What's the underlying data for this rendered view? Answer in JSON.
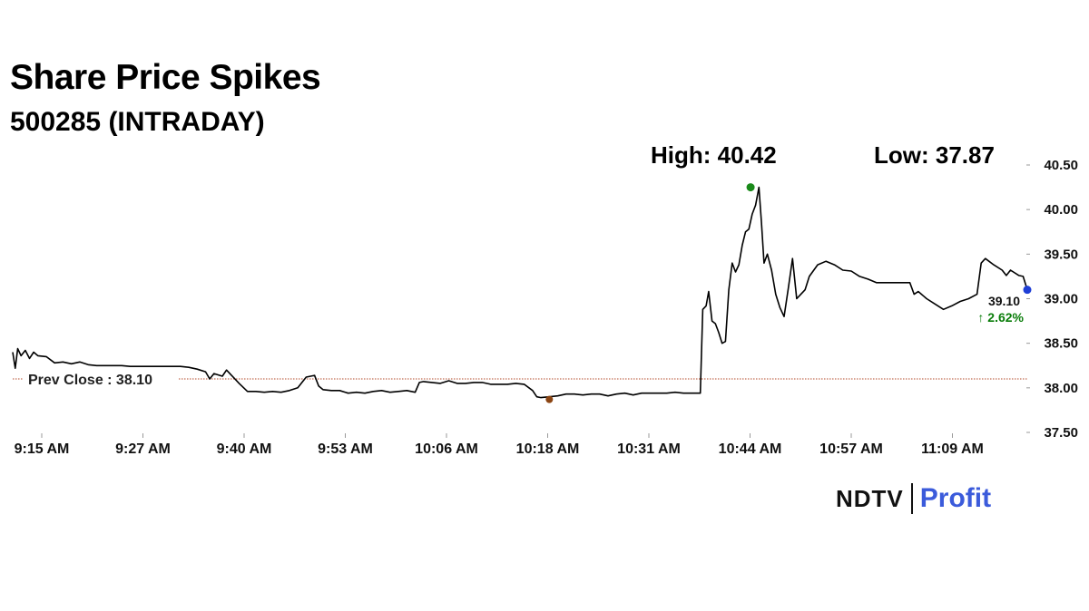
{
  "header": {
    "title": "Share Price Spikes",
    "subtitle": "500285 (INTRADAY)",
    "high_label": "High: 40.42",
    "low_label": "Low: 37.87"
  },
  "chart_data": {
    "type": "line",
    "y_ticks": [
      "40.50",
      "40.00",
      "39.50",
      "39.00",
      "38.50",
      "38.00",
      "37.50"
    ],
    "x_ticks": [
      "9:15 AM",
      "9:27 AM",
      "9:40 AM",
      "9:53 AM",
      "10:06 AM",
      "10:18 AM",
      "10:31 AM",
      "10:44 AM",
      "10:57 AM",
      "11:09 AM"
    ],
    "ylim": [
      37.5,
      40.5
    ],
    "xlim": [
      0,
      121
    ],
    "prev_close": 38.1,
    "prev_close_label": "Prev Close : 38.10",
    "last_price_label": "39.10",
    "change_label": "↑ 2.62%",
    "colors": {
      "line": "#000000",
      "high": "#1a8a1a",
      "low": "#8b4513",
      "last": "#1f3fd6",
      "prev_close": "#b34a2a",
      "change": "#0a7d0a"
    },
    "high_point": {
      "x": 88,
      "y": 40.25
    },
    "low_point": {
      "x": 64,
      "y": 37.87
    },
    "last_point": {
      "x": 121,
      "y": 39.1
    },
    "series": [
      {
        "values": [
          [
            0,
            38.4
          ],
          [
            0.3,
            38.22
          ],
          [
            0.6,
            38.44
          ],
          [
            1,
            38.36
          ],
          [
            1.5,
            38.42
          ],
          [
            2,
            38.33
          ],
          [
            2.5,
            38.4
          ],
          [
            3,
            38.36
          ],
          [
            4,
            38.35
          ],
          [
            5,
            38.28
          ],
          [
            6,
            38.29
          ],
          [
            7,
            38.27
          ],
          [
            8,
            38.29
          ],
          [
            9,
            38.26
          ],
          [
            10,
            38.25
          ],
          [
            11,
            38.25
          ],
          [
            12,
            38.25
          ],
          [
            13,
            38.25
          ],
          [
            14,
            38.24
          ],
          [
            15,
            38.24
          ],
          [
            16,
            38.24
          ],
          [
            17,
            38.24
          ],
          [
            18,
            38.24
          ],
          [
            19,
            38.24
          ],
          [
            20,
            38.24
          ],
          [
            21,
            38.23
          ],
          [
            22,
            38.21
          ],
          [
            23,
            38.18
          ],
          [
            23.5,
            38.1
          ],
          [
            24,
            38.16
          ],
          [
            25,
            38.13
          ],
          [
            25.5,
            38.2
          ],
          [
            26,
            38.15
          ],
          [
            27,
            38.05
          ],
          [
            28,
            37.96
          ],
          [
            29,
            37.96
          ],
          [
            30,
            37.95
          ],
          [
            31,
            37.96
          ],
          [
            32,
            37.95
          ],
          [
            33,
            37.97
          ],
          [
            34,
            38.0
          ],
          [
            35,
            38.12
          ],
          [
            36,
            38.14
          ],
          [
            36.5,
            38.02
          ],
          [
            37,
            37.98
          ],
          [
            38,
            37.97
          ],
          [
            39,
            37.97
          ],
          [
            40,
            37.94
          ],
          [
            41,
            37.95
          ],
          [
            42,
            37.94
          ],
          [
            43,
            37.96
          ],
          [
            44,
            37.97
          ],
          [
            45,
            37.95
          ],
          [
            46,
            37.96
          ],
          [
            47,
            37.97
          ],
          [
            48,
            37.95
          ],
          [
            48.5,
            38.06
          ],
          [
            49,
            38.07
          ],
          [
            50,
            38.06
          ],
          [
            51,
            38.05
          ],
          [
            52,
            38.08
          ],
          [
            53,
            38.05
          ],
          [
            54,
            38.05
          ],
          [
            55,
            38.06
          ],
          [
            56,
            38.06
          ],
          [
            57,
            38.04
          ],
          [
            58,
            38.04
          ],
          [
            59,
            38.04
          ],
          [
            60,
            38.05
          ],
          [
            61,
            38.04
          ],
          [
            62,
            37.97
          ],
          [
            62.5,
            37.9
          ],
          [
            63,
            37.89
          ],
          [
            64,
            37.9
          ],
          [
            65,
            37.91
          ],
          [
            66,
            37.93
          ],
          [
            67,
            37.93
          ],
          [
            68,
            37.92
          ],
          [
            69,
            37.93
          ],
          [
            70,
            37.93
          ],
          [
            71,
            37.91
          ],
          [
            72,
            37.93
          ],
          [
            73,
            37.94
          ],
          [
            74,
            37.92
          ],
          [
            75,
            37.94
          ],
          [
            76,
            37.94
          ],
          [
            77,
            37.94
          ],
          [
            78,
            37.94
          ],
          [
            79,
            37.95
          ],
          [
            80,
            37.94
          ],
          [
            81,
            37.94
          ],
          [
            82,
            37.94
          ],
          [
            82.3,
            38.88
          ],
          [
            82.7,
            38.92
          ],
          [
            83,
            39.08
          ],
          [
            83.4,
            38.75
          ],
          [
            83.8,
            38.72
          ],
          [
            84.2,
            38.62
          ],
          [
            84.6,
            38.5
          ],
          [
            85,
            38.52
          ],
          [
            85.4,
            39.1
          ],
          [
            85.8,
            39.4
          ],
          [
            86.2,
            39.3
          ],
          [
            86.6,
            39.38
          ],
          [
            87,
            39.6
          ],
          [
            87.4,
            39.75
          ],
          [
            87.8,
            39.78
          ],
          [
            88.2,
            39.95
          ],
          [
            88.6,
            40.05
          ],
          [
            89,
            40.25
          ],
          [
            89.3,
            39.85
          ],
          [
            89.6,
            39.4
          ],
          [
            90,
            39.5
          ],
          [
            90.5,
            39.32
          ],
          [
            91,
            39.05
          ],
          [
            91.5,
            38.9
          ],
          [
            92,
            38.8
          ],
          [
            92.5,
            39.12
          ],
          [
            93,
            39.45
          ],
          [
            93.5,
            39.0
          ],
          [
            94,
            39.05
          ],
          [
            94.5,
            39.1
          ],
          [
            95,
            39.25
          ],
          [
            96,
            39.38
          ],
          [
            97,
            39.42
          ],
          [
            98,
            39.38
          ],
          [
            99,
            39.32
          ],
          [
            100,
            39.31
          ],
          [
            101,
            39.25
          ],
          [
            102,
            39.22
          ],
          [
            103,
            39.18
          ],
          [
            104,
            39.18
          ],
          [
            105,
            39.18
          ],
          [
            106,
            39.18
          ],
          [
            107,
            39.18
          ],
          [
            107.5,
            39.05
          ],
          [
            108,
            39.08
          ],
          [
            109,
            39.0
          ],
          [
            110,
            38.94
          ],
          [
            111,
            38.88
          ],
          [
            112,
            38.92
          ],
          [
            113,
            38.97
          ],
          [
            114,
            39.0
          ],
          [
            115,
            39.05
          ],
          [
            115.5,
            39.4
          ],
          [
            116,
            39.45
          ],
          [
            117,
            39.38
          ],
          [
            118,
            39.32
          ],
          [
            118.5,
            39.26
          ],
          [
            119,
            39.32
          ],
          [
            120,
            39.26
          ],
          [
            120.5,
            39.25
          ],
          [
            121,
            39.1
          ]
        ]
      }
    ]
  },
  "logo": {
    "left": "NDTV",
    "right": "Profit"
  }
}
